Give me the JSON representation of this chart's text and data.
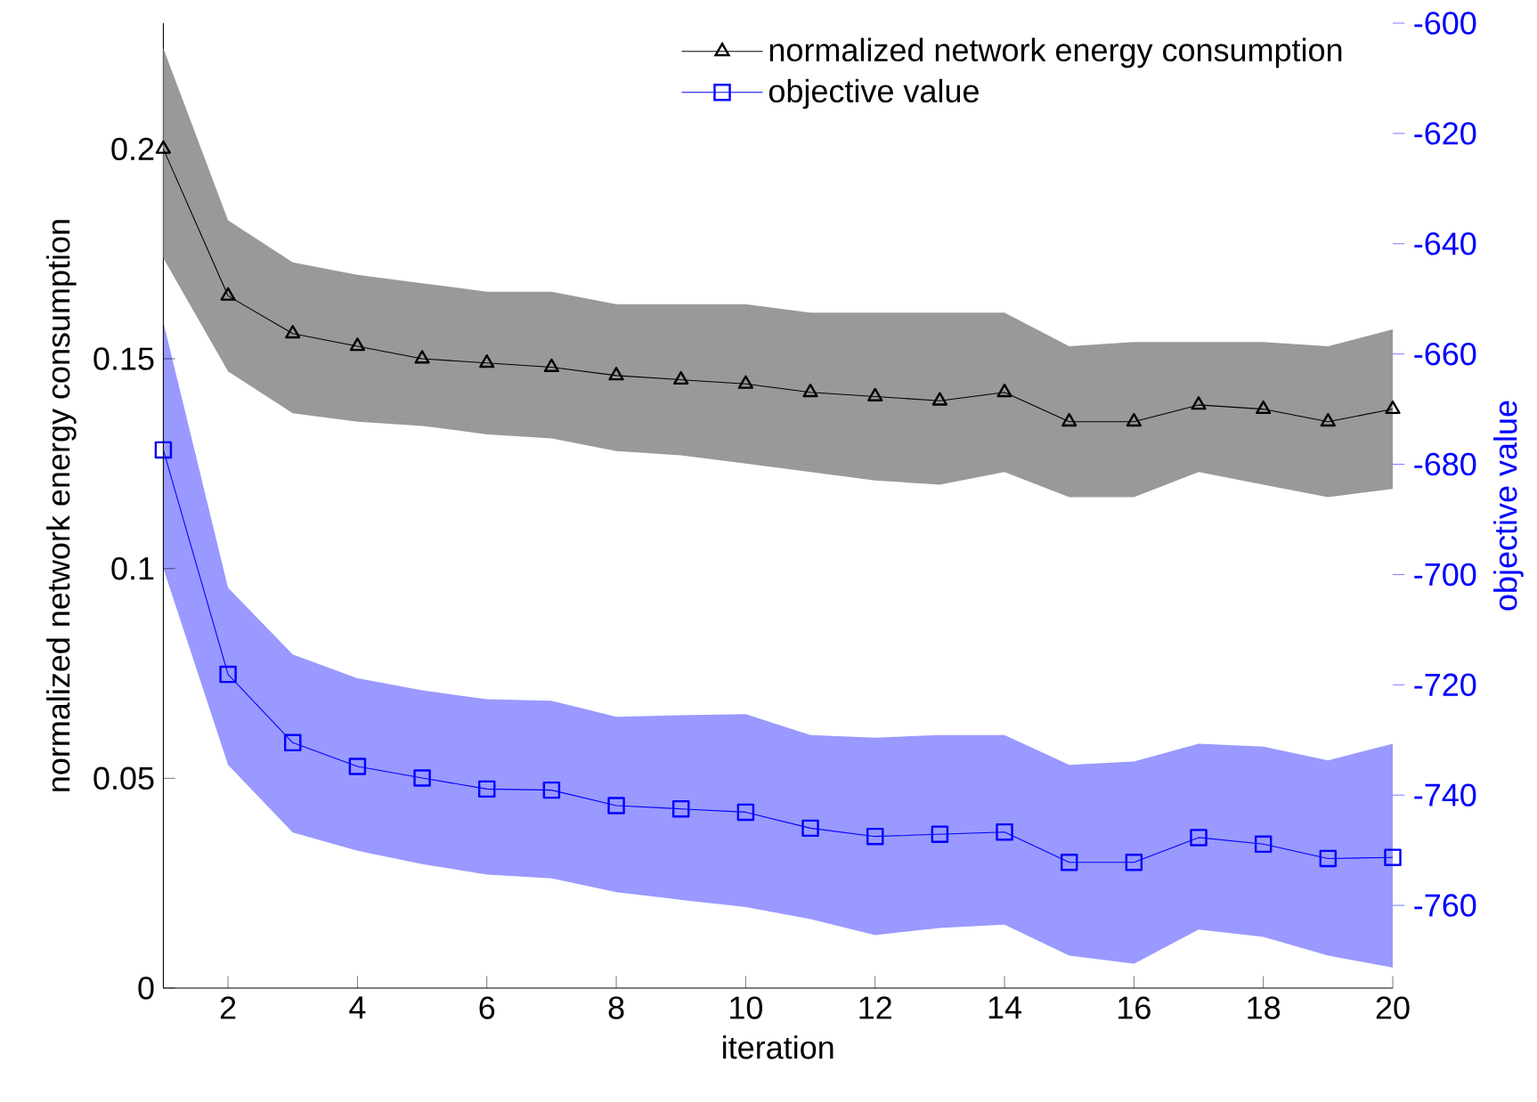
{
  "chart_data": {
    "type": "line",
    "xlabel": "iteration",
    "ylabel": "normalized network energy consumption",
    "y2label": "objective value",
    "x": [
      1,
      2,
      3,
      4,
      5,
      6,
      7,
      8,
      9,
      10,
      11,
      12,
      13,
      14,
      15,
      16,
      17,
      18,
      19,
      20
    ],
    "xlim": [
      1,
      20
    ],
    "xticks": [
      2,
      4,
      6,
      8,
      10,
      12,
      14,
      16,
      18,
      20
    ],
    "ylim": [
      0,
      0.23
    ],
    "yticks": [
      0,
      0.05,
      0.1,
      0.15,
      0.2
    ],
    "y2lim": [
      -775,
      -600
    ],
    "y2ticks": [
      -760,
      -740,
      -720,
      -700,
      -680,
      -660,
      -640,
      -620,
      -600
    ],
    "legend": "top right",
    "line_style": "solid",
    "series": [
      {
        "name": "normalized network energy consumption",
        "color": "#000000",
        "marker": "triangle",
        "values": [
          0.2,
          0.165,
          0.156,
          0.153,
          0.15,
          0.149,
          0.148,
          0.146,
          0.145,
          0.144,
          0.142,
          0.141,
          0.14,
          0.142,
          0.135,
          0.135,
          0.139,
          0.138,
          0.135,
          0.138
        ],
        "upper": [
          0.224,
          0.183,
          0.173,
          0.17,
          0.168,
          0.166,
          0.166,
          0.163,
          0.163,
          0.163,
          0.161,
          0.161,
          0.161,
          0.161,
          0.153,
          0.154,
          0.154,
          0.154,
          0.153,
          0.157
        ],
        "lower": [
          0.174,
          0.147,
          0.137,
          0.135,
          0.134,
          0.132,
          0.131,
          0.128,
          0.127,
          0.125,
          0.123,
          0.121,
          0.12,
          0.123,
          0.117,
          0.117,
          0.123,
          0.12,
          0.117,
          0.119
        ]
      },
      {
        "name": "objective value",
        "color": "#0000ff",
        "marker": "square",
        "axis": "y2",
        "values": [
          -677.4,
          -718.1,
          -730.5,
          -734.8,
          -736.9,
          -738.9,
          -739.1,
          -741.9,
          -742.5,
          -743.1,
          -746.0,
          -747.5,
          -747.1,
          -746.7,
          -752.2,
          -752.2,
          -747.7,
          -748.9,
          -751.5,
          -751.3
        ],
        "upper": [
          -654.2,
          -702.4,
          -714.5,
          -718.8,
          -721.0,
          -722.6,
          -722.9,
          -725.8,
          -725.5,
          -725.3,
          -729.1,
          -729.6,
          -729.1,
          -729.1,
          -734.5,
          -733.9,
          -730.7,
          -731.2,
          -733.7,
          -730.7
        ],
        "lower": [
          -698.9,
          -734.5,
          -746.8,
          -750.1,
          -752.5,
          -754.4,
          -755.1,
          -757.6,
          -759.0,
          -760.3,
          -762.5,
          -765.4,
          -764.1,
          -763.5,
          -769.1,
          -770.6,
          -764.4,
          -765.7,
          -769.1,
          -771.3
        ]
      }
    ]
  }
}
